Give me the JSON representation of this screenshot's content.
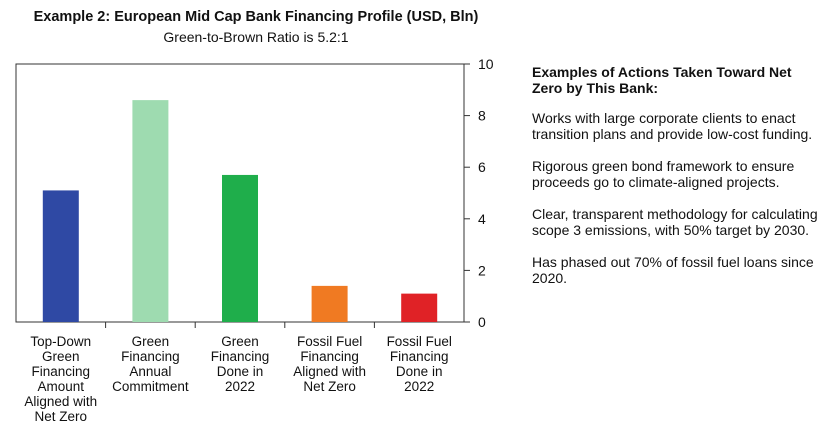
{
  "chart_data": {
    "type": "bar",
    "title": "Example 2: European Mid Cap Bank Financing Profile (USD, Bln)",
    "subtitle": "Green-to-Brown Ratio is 5.2:1",
    "categories": [
      [
        "Top-Down",
        "Green",
        "Financing",
        "Amount",
        "Aligned with",
        "Net Zero"
      ],
      [
        "Green",
        "Financing",
        "Annual",
        "Commitment"
      ],
      [
        "Green",
        "Financing",
        "Done in",
        "2022"
      ],
      [
        "Fossil Fuel",
        "Financing",
        "Aligned with",
        "Net Zero"
      ],
      [
        "Fossil Fuel",
        "Financing",
        "Done in",
        "2022"
      ]
    ],
    "values": [
      5.1,
      8.6,
      5.7,
      1.4,
      1.1
    ],
    "colors": [
      "#2f49a4",
      "#9edbb0",
      "#1fae4b",
      "#f07a22",
      "#e02226"
    ],
    "ylim": [
      0,
      10
    ],
    "yticks": [
      "0",
      "2",
      "4",
      "6",
      "8",
      "10"
    ],
    "y_axis_side": "right",
    "grid": false
  },
  "side_panel": {
    "heading": "Examples of Actions Taken Toward Net Zero by This Bank:",
    "items": [
      "Works with large corporate clients to enact transition plans and provide low-cost funding.",
      "Rigorous green bond framework to ensure proceeds go to climate-aligned projects.",
      "Clear, transparent methodology for calculating scope 3 emissions, with 50% target by 2030.",
      "Has phased out 70% of fossil fuel loans since 2020."
    ]
  }
}
